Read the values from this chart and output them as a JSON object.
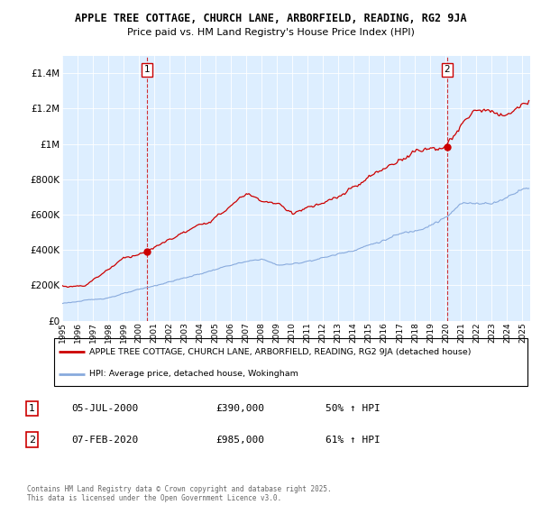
{
  "title_line1": "APPLE TREE COTTAGE, CHURCH LANE, ARBORFIELD, READING, RG2 9JA",
  "title_line2": "Price paid vs. HM Land Registry's House Price Index (HPI)",
  "legend_label1": "APPLE TREE COTTAGE, CHURCH LANE, ARBORFIELD, READING, RG2 9JA (detached house)",
  "legend_label2": "HPI: Average price, detached house, Wokingham",
  "annotation1": {
    "number": "1",
    "date": "05-JUL-2000",
    "price": "£390,000",
    "hpi": "50% ↑ HPI"
  },
  "annotation2": {
    "number": "2",
    "date": "07-FEB-2020",
    "price": "£985,000",
    "hpi": "61% ↑ HPI"
  },
  "footer": "Contains HM Land Registry data © Crown copyright and database right 2025.\nThis data is licensed under the Open Government Licence v3.0.",
  "line1_color": "#cc0000",
  "line2_color": "#88aadd",
  "bg_color": "#ddeeff",
  "marker_color": "#cc0000",
  "vline_color": "#cc0000",
  "annotation_box_color": "#cc0000",
  "ylim": [
    0,
    1500000
  ],
  "yticks": [
    0,
    200000,
    400000,
    600000,
    800000,
    1000000,
    1200000,
    1400000
  ],
  "sale1_year": 2000.54,
  "sale1_price": 390000,
  "sale2_year": 2020.09,
  "sale2_price": 985000,
  "xstart": 1995,
  "xend": 2025.5
}
